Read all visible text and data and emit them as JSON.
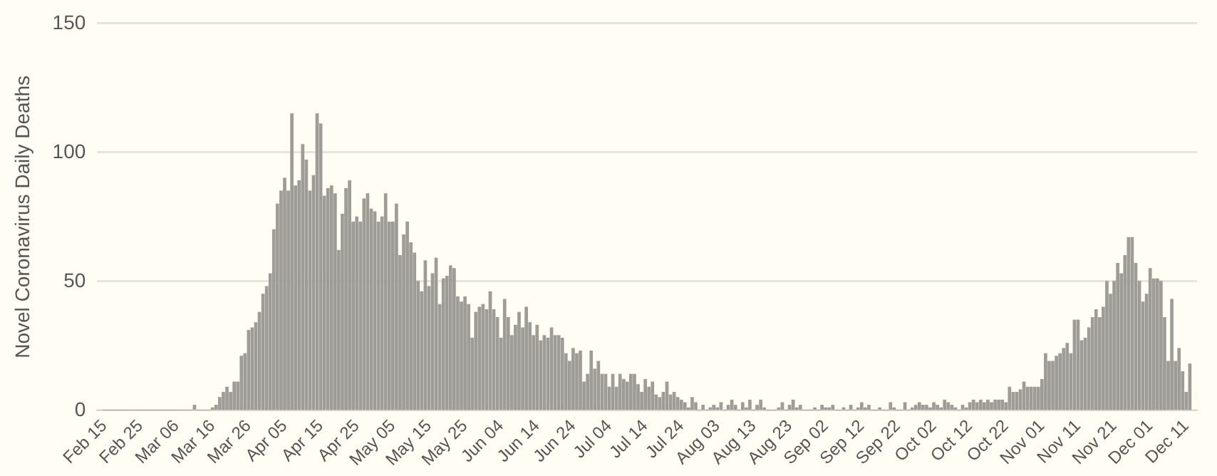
{
  "chart_data": {
    "type": "bar",
    "ylabel": "Novel Coronavirus Daily Deaths",
    "grid": "y",
    "legend": false,
    "ylim": [
      0,
      150
    ],
    "yticks": [
      0,
      50,
      100,
      150
    ],
    "xlim": [
      "--02-13",
      "--12-14"
    ],
    "xticks": [
      {
        "value": "--02-15",
        "label": "Feb 15"
      },
      {
        "value": "--02-25",
        "label": "Feb 25"
      },
      {
        "value": "--03-06",
        "label": "Mar 06"
      },
      {
        "value": "--03-16",
        "label": "Mar 16"
      },
      {
        "value": "--03-26",
        "label": "Mar 26"
      },
      {
        "value": "--04-05",
        "label": "Apr 05"
      },
      {
        "value": "--04-15",
        "label": "Apr 15"
      },
      {
        "value": "--04-25",
        "label": "Apr 25"
      },
      {
        "value": "--05-05",
        "label": "May 05"
      },
      {
        "value": "--05-15",
        "label": "May 15"
      },
      {
        "value": "--05-25",
        "label": "May 25"
      },
      {
        "value": "--06-04",
        "label": "Jun 04"
      },
      {
        "value": "--06-14",
        "label": "Jun 14"
      },
      {
        "value": "--06-24",
        "label": "Jun 24"
      },
      {
        "value": "--07-04",
        "label": "Jul 04"
      },
      {
        "value": "--07-14",
        "label": "Jul 14"
      },
      {
        "value": "--07-24",
        "label": "Jul 24"
      },
      {
        "value": "--08-03",
        "label": "Aug 03"
      },
      {
        "value": "--08-13",
        "label": "Aug 13"
      },
      {
        "value": "--08-23",
        "label": "Aug 23"
      },
      {
        "value": "--09-02",
        "label": "Sep 02"
      },
      {
        "value": "--09-12",
        "label": "Sep 12"
      },
      {
        "value": "--09-22",
        "label": "Sep 22"
      },
      {
        "value": "--10-02",
        "label": "Oct 02"
      },
      {
        "value": "--10-12",
        "label": "Oct 12"
      },
      {
        "value": "--10-22",
        "label": "Oct 22"
      },
      {
        "value": "--11-01",
        "label": "Nov 01"
      },
      {
        "value": "--11-11",
        "label": "Nov 11"
      },
      {
        "value": "--11-21",
        "label": "Nov 21"
      },
      {
        "value": "--12-01",
        "label": "Dec 01"
      },
      {
        "value": "--12-11",
        "label": "Dec 11"
      }
    ],
    "x": [
      "--02-15",
      "--02-16",
      "--02-17",
      "--02-18",
      "--02-19",
      "--02-20",
      "--02-21",
      "--02-22",
      "--02-23",
      "--02-24",
      "--02-25",
      "--02-26",
      "--02-27",
      "--02-28",
      "--02-29",
      "--03-01",
      "--03-02",
      "--03-03",
      "--03-04",
      "--03-05",
      "--03-06",
      "--03-07",
      "--03-08",
      "--03-09",
      "--03-10",
      "--03-11",
      "--03-12",
      "--03-13",
      "--03-14",
      "--03-15",
      "--03-16",
      "--03-17",
      "--03-18",
      "--03-19",
      "--03-20",
      "--03-21",
      "--03-22",
      "--03-23",
      "--03-24",
      "--03-25",
      "--03-26",
      "--03-27",
      "--03-28",
      "--03-29",
      "--03-30",
      "--03-31",
      "--04-01",
      "--04-02",
      "--04-03",
      "--04-04",
      "--04-05",
      "--04-06",
      "--04-07",
      "--04-08",
      "--04-09",
      "--04-10",
      "--04-11",
      "--04-12",
      "--04-13",
      "--04-14",
      "--04-15",
      "--04-16",
      "--04-17",
      "--04-18",
      "--04-19",
      "--04-20",
      "--04-21",
      "--04-22",
      "--04-23",
      "--04-24",
      "--04-25",
      "--04-26",
      "--04-27",
      "--04-28",
      "--04-29",
      "--04-30",
      "--05-01",
      "--05-02",
      "--05-03",
      "--05-04",
      "--05-05",
      "--05-06",
      "--05-07",
      "--05-08",
      "--05-09",
      "--05-10",
      "--05-11",
      "--05-12",
      "--05-13",
      "--05-14",
      "--05-15",
      "--05-16",
      "--05-17",
      "--05-18",
      "--05-19",
      "--05-20",
      "--05-21",
      "--05-22",
      "--05-23",
      "--05-24",
      "--05-25",
      "--05-26",
      "--05-27",
      "--05-28",
      "--05-29",
      "--05-30",
      "--05-31",
      "--06-01",
      "--06-02",
      "--06-03",
      "--06-04",
      "--06-05",
      "--06-06",
      "--06-07",
      "--06-08",
      "--06-09",
      "--06-10",
      "--06-11",
      "--06-12",
      "--06-13",
      "--06-14",
      "--06-15",
      "--06-16",
      "--06-17",
      "--06-18",
      "--06-19",
      "--06-20",
      "--06-21",
      "--06-22",
      "--06-23",
      "--06-24",
      "--06-25",
      "--06-26",
      "--06-27",
      "--06-28",
      "--06-29",
      "--06-30",
      "--07-01",
      "--07-02",
      "--07-03",
      "--07-04",
      "--07-05",
      "--07-06",
      "--07-07",
      "--07-08",
      "--07-09",
      "--07-10",
      "--07-11",
      "--07-12",
      "--07-13",
      "--07-14",
      "--07-15",
      "--07-16",
      "--07-17",
      "--07-18",
      "--07-19",
      "--07-20",
      "--07-21",
      "--07-22",
      "--07-23",
      "--07-24",
      "--07-25",
      "--07-26",
      "--07-27",
      "--07-28",
      "--07-29",
      "--07-30",
      "--07-31",
      "--08-01",
      "--08-02",
      "--08-03",
      "--08-04",
      "--08-05",
      "--08-06",
      "--08-07",
      "--08-08",
      "--08-09",
      "--08-10",
      "--08-11",
      "--08-12",
      "--08-13",
      "--08-14",
      "--08-15",
      "--08-16",
      "--08-17",
      "--08-18",
      "--08-19",
      "--08-20",
      "--08-21",
      "--08-22",
      "--08-23",
      "--08-24",
      "--08-25",
      "--08-26",
      "--08-27",
      "--08-28",
      "--08-29",
      "--08-30",
      "--08-31",
      "--09-01",
      "--09-02",
      "--09-03",
      "--09-04",
      "--09-05",
      "--09-06",
      "--09-07",
      "--09-08",
      "--09-09",
      "--09-10",
      "--09-11",
      "--09-12",
      "--09-13",
      "--09-14",
      "--09-15",
      "--09-16",
      "--09-17",
      "--09-18",
      "--09-19",
      "--09-20",
      "--09-21",
      "--09-22",
      "--09-23",
      "--09-24",
      "--09-25",
      "--09-26",
      "--09-27",
      "--09-28",
      "--09-29",
      "--09-30",
      "--10-01",
      "--10-02",
      "--10-03",
      "--10-04",
      "--10-05",
      "--10-06",
      "--10-07",
      "--10-08",
      "--10-09",
      "--10-10",
      "--10-11",
      "--10-12",
      "--10-13",
      "--10-14",
      "--10-15",
      "--10-16",
      "--10-17",
      "--10-18",
      "--10-19",
      "--10-20",
      "--10-21",
      "--10-22",
      "--10-23",
      "--10-24",
      "--10-25",
      "--10-26",
      "--10-27",
      "--10-28",
      "--10-29",
      "--10-30",
      "--10-31",
      "--11-01",
      "--11-02",
      "--11-03",
      "--11-04",
      "--11-05",
      "--11-06",
      "--11-07",
      "--11-08",
      "--11-09",
      "--11-10",
      "--11-11",
      "--11-12",
      "--11-13",
      "--11-14",
      "--11-15",
      "--11-16",
      "--11-17",
      "--11-18",
      "--11-19",
      "--11-20",
      "--11-21",
      "--11-22",
      "--11-23",
      "--11-24",
      "--11-25",
      "--11-26",
      "--11-27",
      "--11-28",
      "--11-29",
      "--11-30",
      "--12-01",
      "--12-02",
      "--12-03",
      "--12-04",
      "--12-05",
      "--12-06",
      "--12-07",
      "--12-08",
      "--12-09",
      "--12-10",
      "--12-11",
      "--12-12"
    ],
    "series": [
      {
        "color": "#9e9c96",
        "values": [
          0,
          0,
          0,
          0,
          0,
          0,
          0,
          0,
          0,
          0,
          0,
          0,
          0,
          0,
          0,
          0,
          0,
          0,
          0,
          0,
          0,
          0,
          0,
          0,
          0,
          2,
          0,
          0,
          0,
          0,
          1,
          2,
          5,
          7,
          9,
          7,
          11,
          11,
          21,
          22,
          31,
          32,
          34,
          38,
          45,
          48,
          53,
          70,
          80,
          85,
          90,
          85,
          115,
          87,
          89,
          103,
          97,
          85,
          91,
          115,
          111,
          83,
          86,
          87,
          84,
          62,
          76,
          86,
          89,
          73,
          75,
          73,
          82,
          84,
          78,
          77,
          73,
          75,
          84,
          73,
          73,
          80,
          60,
          68,
          73,
          65,
          61,
          50,
          46,
          58,
          48,
          53,
          59,
          41,
          51,
          52,
          56,
          55,
          44,
          42,
          44,
          41,
          28,
          38,
          40,
          41,
          39,
          46,
          39,
          36,
          28,
          43,
          36,
          29,
          33,
          38,
          32,
          40,
          34,
          29,
          33,
          27,
          29,
          28,
          32,
          29,
          29,
          28,
          22,
          19,
          24,
          22,
          23,
          11,
          14,
          23,
          16,
          19,
          14,
          14,
          9,
          14,
          9,
          14,
          12,
          11,
          14,
          14,
          10,
          7,
          12,
          9,
          11,
          6,
          5,
          7,
          11,
          6,
          7,
          5,
          4,
          3,
          1,
          5,
          3,
          0,
          2,
          0,
          1,
          2,
          1,
          3,
          0,
          2,
          4,
          2,
          0,
          3,
          1,
          4,
          0,
          2,
          4,
          1,
          0,
          0,
          0,
          1,
          3,
          0,
          2,
          4,
          1,
          2,
          0,
          0,
          0,
          1,
          0,
          2,
          1,
          1,
          2,
          0,
          0,
          1,
          0,
          2,
          0,
          1,
          3,
          1,
          2,
          0,
          0,
          1,
          0,
          0,
          3,
          1,
          0,
          0,
          3,
          0,
          1,
          2,
          3,
          2,
          2,
          1,
          3,
          2,
          1,
          4,
          3,
          2,
          1,
          0,
          2,
          1,
          3,
          4,
          3,
          4,
          3,
          4,
          3,
          4,
          4,
          4,
          3,
          9,
          7,
          7,
          8,
          11,
          9,
          9,
          9,
          9,
          12,
          22,
          19,
          19,
          21,
          22,
          24,
          26,
          22,
          35,
          35,
          27,
          28,
          32,
          36,
          39,
          36,
          40,
          50,
          45,
          50,
          57,
          53,
          60,
          67,
          67,
          57,
          50,
          42,
          45,
          55,
          51,
          51,
          50,
          36,
          19,
          43,
          19,
          24,
          15,
          7,
          18
        ]
      }
    ]
  }
}
